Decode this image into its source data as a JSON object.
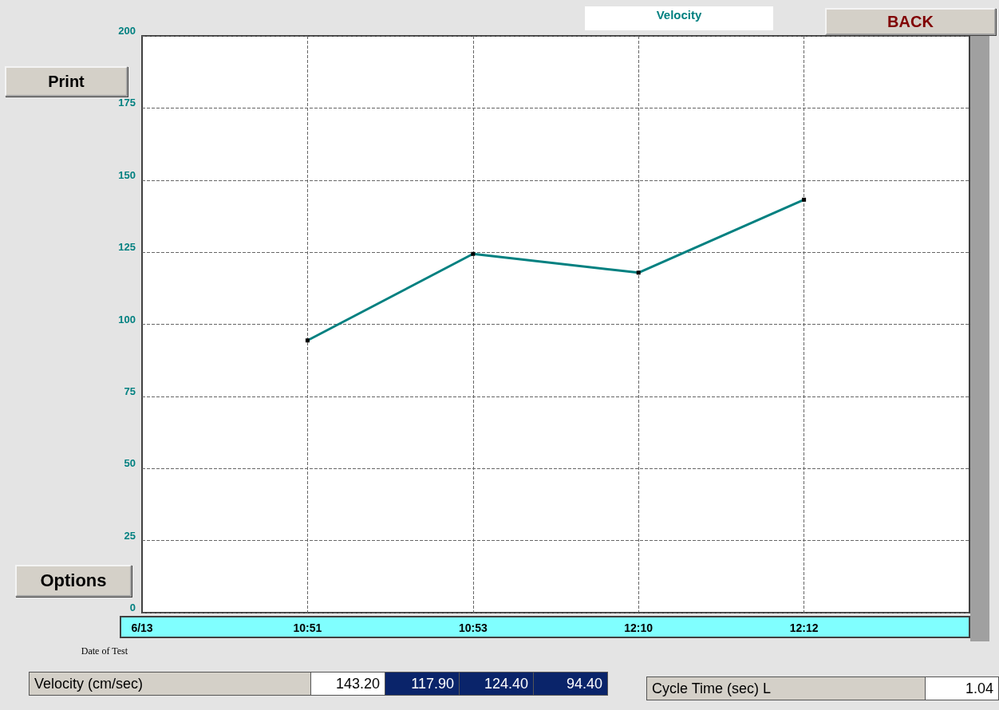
{
  "chart_data": {
    "type": "line",
    "title": "Velocity",
    "xlabel": "Date of Test",
    "categories": [
      "6/13",
      "10:51",
      "10:53",
      "12:10",
      "12:12",
      null
    ],
    "series": [
      {
        "color": "#008080",
        "values": [
          null,
          94.4,
          124.4,
          117.9,
          143.2,
          null
        ]
      }
    ],
    "ylim": [
      0,
      200
    ],
    "yticks": [
      0,
      25,
      50,
      75,
      100,
      125,
      150,
      175,
      200
    ],
    "grid": true,
    "marker": "square",
    "line_style": "solid",
    "annotations": [
      "Print",
      "Options",
      "BACK",
      "Velocity (cm/sec)",
      "143.20",
      "117.90",
      "124.40",
      "94.40",
      "Cycle Time (sec) L",
      "1.04"
    ]
  }
}
